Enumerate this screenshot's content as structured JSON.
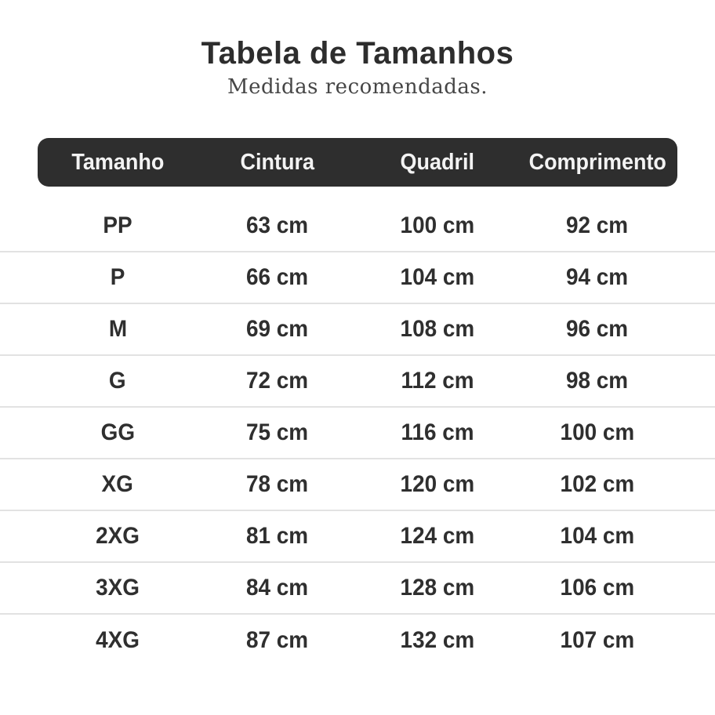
{
  "header": {
    "title": "Tabela de Tamanhos",
    "subtitle": "Medidas recomendadas."
  },
  "chart_data": {
    "type": "table",
    "title": "Tabela de Tamanhos",
    "subtitle": "Medidas recomendadas.",
    "columns": [
      "Tamanho",
      "Cintura",
      "Quadril",
      "Comprimento"
    ],
    "rows": [
      [
        "PP",
        "63 cm",
        "100 cm",
        "92 cm"
      ],
      [
        "P",
        "66 cm",
        "104 cm",
        "94 cm"
      ],
      [
        "M",
        "69 cm",
        "108 cm",
        "96 cm"
      ],
      [
        "G",
        "72 cm",
        "112 cm",
        "98 cm"
      ],
      [
        "GG",
        "75 cm",
        "116 cm",
        "100 cm"
      ],
      [
        "XG",
        "78 cm",
        "120 cm",
        "102 cm"
      ],
      [
        "2XG",
        "81 cm",
        "124 cm",
        "104 cm"
      ],
      [
        "3XG",
        "84 cm",
        "128 cm",
        "106 cm"
      ],
      [
        "4XG",
        "87 cm",
        "132 cm",
        "107 cm"
      ]
    ],
    "units": "cm",
    "layout_hints": {
      "header_style": "dark rounded pill bar",
      "row_dividers": "full-width light gray lines",
      "alignment": "all columns centered"
    }
  },
  "colors": {
    "header_bg": "#2e2e2e",
    "header_text": "#f3f3f3",
    "title_text": "#2d2d2d",
    "subtitle_text": "#464646",
    "body_text": "#2f2f2f",
    "divider": "#e2e2e2",
    "page_bg": "#ffffff"
  }
}
